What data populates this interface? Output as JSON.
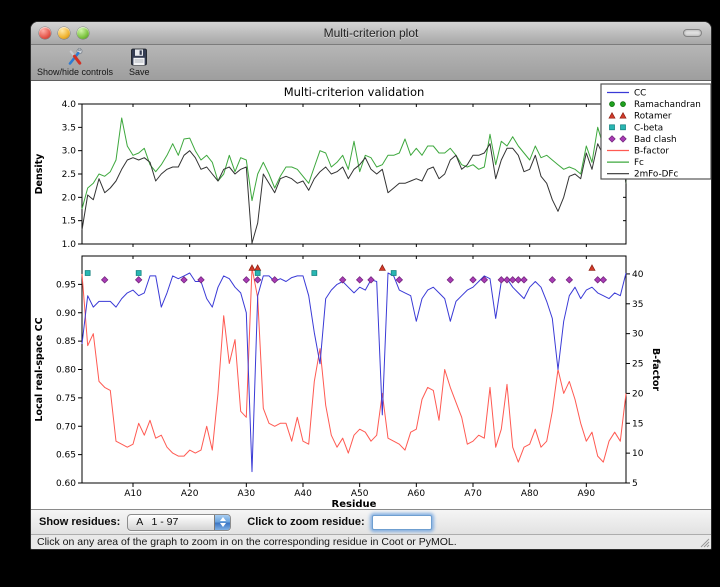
{
  "window": {
    "title": "Multi-criterion plot"
  },
  "toolbar": {
    "buttons": [
      {
        "label": "Show/hide controls",
        "icon": "tools-icon"
      },
      {
        "label": "Save",
        "icon": "save-icon"
      }
    ]
  },
  "controls": {
    "show_residues_label": "Show residues:",
    "range_value": "A   1 - 97",
    "zoom_label": "Click to zoom residue:",
    "zoom_value": ""
  },
  "status_bar": {
    "text": "Click on any area of the graph to zoom in on the corresponding residue in Coot or PyMOL."
  },
  "chart_data": {
    "type": "line",
    "title": "Multi-criterion validation",
    "xlabel": "Residue",
    "x_range": [
      1,
      97
    ],
    "x_tick_values": [
      10,
      20,
      30,
      40,
      50,
      60,
      70,
      80,
      90
    ],
    "x_tick_labels": [
      "A10",
      "A20",
      "A30",
      "A40",
      "A50",
      "A60",
      "A70",
      "A80",
      "A90"
    ],
    "grid": false,
    "legend_position": "upper right",
    "legend": [
      {
        "label": "CC",
        "glyph": "line",
        "color": "#3a3ad6"
      },
      {
        "label": "Ramachandran",
        "glyph": "circle",
        "color": "#1fa01f"
      },
      {
        "label": "Rotamer",
        "glyph": "triangle",
        "color": "#d13b2a"
      },
      {
        "label": "C-beta",
        "glyph": "square",
        "color": "#29b6b2"
      },
      {
        "label": "Bad clash",
        "glyph": "diamond",
        "color": "#a83bb4"
      },
      {
        "label": "B-factor",
        "glyph": "line",
        "color": "#ff5a52"
      },
      {
        "label": "Fc",
        "glyph": "line",
        "color": "#3ea83e"
      },
      {
        "label": "2mFo-DFc",
        "glyph": "line",
        "color": "#333333"
      }
    ],
    "subplots": [
      {
        "ylabel": "Density",
        "ylim": [
          1.0,
          4.0
        ],
        "yticks": [
          1.0,
          1.5,
          2.0,
          2.5,
          3.0,
          3.5,
          4.0
        ],
        "series": [
          {
            "name": "Fc",
            "color": "#3ea83e",
            "values": [
              1.75,
              2.2,
              2.3,
              2.5,
              2.45,
              2.55,
              2.8,
              3.7,
              3.1,
              2.9,
              2.95,
              3.05,
              2.7,
              2.55,
              2.7,
              2.9,
              3.15,
              2.9,
              3.25,
              3.27,
              3.0,
              2.8,
              2.9,
              2.75,
              2.35,
              2.5,
              2.9,
              2.55,
              2.85,
              2.8,
              1.93,
              2.5,
              2.75,
              2.5,
              2.2,
              2.45,
              2.65,
              2.65,
              2.6,
              2.45,
              2.3,
              2.65,
              3.0,
              2.95,
              2.65,
              2.75,
              2.9,
              2.6,
              3.2,
              2.55,
              2.9,
              2.85,
              2.65,
              2.7,
              2.9,
              2.9,
              2.95,
              3.25,
              2.9,
              3.05,
              2.9,
              3.1,
              3.1,
              2.95,
              2.95,
              3.05,
              2.9,
              2.7,
              2.65,
              2.7,
              2.6,
              2.65,
              3.35,
              2.7,
              3.2,
              3.1,
              3.3,
              3.1,
              2.95,
              2.8,
              3.1,
              2.85,
              2.9,
              2.8,
              2.7,
              2.6,
              2.65,
              2.6,
              2.5,
              3.1,
              2.75,
              3.5,
              3.1,
              3.1,
              3.2,
              3.3,
              2.3
            ]
          },
          {
            "name": "2mFo-DFc",
            "color": "#333333",
            "values": [
              1.3,
              2.05,
              1.95,
              2.4,
              2.1,
              2.2,
              2.35,
              2.6,
              2.8,
              2.85,
              2.8,
              2.85,
              2.75,
              2.35,
              2.5,
              2.6,
              2.65,
              2.65,
              2.9,
              3.0,
              2.85,
              2.6,
              2.65,
              2.5,
              2.35,
              2.6,
              2.65,
              2.5,
              2.6,
              2.65,
              1.02,
              1.45,
              2.5,
              2.3,
              2.1,
              2.4,
              2.45,
              2.4,
              2.3,
              2.35,
              2.15,
              2.4,
              2.55,
              2.65,
              2.5,
              2.55,
              2.65,
              2.4,
              2.6,
              2.7,
              2.85,
              2.6,
              2.5,
              2.6,
              2.1,
              2.2,
              2.3,
              2.3,
              2.35,
              2.4,
              2.35,
              2.6,
              2.65,
              2.4,
              2.5,
              2.8,
              2.9,
              2.6,
              2.7,
              2.9,
              2.9,
              2.95,
              3.15,
              2.4,
              2.8,
              3.05,
              3.05,
              2.9,
              2.55,
              2.6,
              2.9,
              2.45,
              2.3,
              1.95,
              1.7,
              2.0,
              2.45,
              2.5,
              2.4,
              2.95,
              2.6,
              3.15,
              2.9,
              3.0,
              3.1,
              3.1,
              2.3
            ]
          }
        ]
      },
      {
        "ylabel": "Local real-space CC",
        "ylim": [
          0.6,
          1.0
        ],
        "yticks": [
          0.6,
          0.65,
          0.7,
          0.75,
          0.8,
          0.85,
          0.9,
          0.95
        ],
        "ylabel_right": "B-factor",
        "ylim_right": [
          5,
          43
        ],
        "yticks_right": [
          5,
          10,
          15,
          20,
          25,
          30,
          35,
          40
        ],
        "series": [
          {
            "name": "CC",
            "axis": "left",
            "color": "#3a3ad6",
            "values": [
              0.845,
              0.93,
              0.91,
              0.92,
              0.92,
              0.92,
              0.91,
              0.925,
              0.935,
              0.94,
              0.93,
              0.935,
              0.965,
              0.965,
              0.91,
              0.935,
              0.965,
              0.96,
              0.965,
              0.97,
              0.955,
              0.955,
              0.925,
              0.91,
              0.945,
              0.965,
              0.96,
              0.945,
              0.935,
              0.9,
              0.62,
              0.93,
              0.965,
              0.965,
              0.955,
              0.96,
              0.955,
              0.962,
              0.965,
              0.965,
              0.93,
              0.865,
              0.81,
              0.925,
              0.94,
              0.95,
              0.955,
              0.945,
              0.935,
              0.945,
              0.94,
              0.958,
              0.955,
              0.72,
              0.97,
              0.965,
              0.94,
              0.935,
              0.93,
              0.885,
              0.925,
              0.94,
              0.945,
              0.935,
              0.925,
              0.885,
              0.92,
              0.93,
              0.94,
              0.945,
              0.955,
              0.965,
              0.96,
              0.89,
              0.955,
              0.96,
              0.945,
              0.935,
              0.925,
              0.945,
              0.955,
              0.945,
              0.92,
              0.89,
              0.8,
              0.885,
              0.93,
              0.945,
              0.925,
              0.94,
              0.945,
              0.935,
              0.93,
              0.925,
              0.935,
              0.93,
              0.97
            ]
          },
          {
            "name": "B-factor",
            "axis": "right",
            "color": "#ff5a52",
            "values": [
              40,
              28,
              30,
              22,
              21,
              20.5,
              12,
              11.5,
              11,
              11.5,
              15,
              13,
              15.5,
              12.5,
              13,
              11,
              10,
              9.5,
              9.5,
              10.5,
              10,
              10.5,
              14.5,
              10.5,
              20,
              33,
              25,
              29,
              17,
              16,
              41,
              36,
              17.5,
              15,
              14.5,
              15,
              15,
              12,
              16,
              12,
              11.5,
              22,
              27.5,
              18,
              13,
              11,
              12.5,
              10,
              13,
              14,
              13.5,
              12,
              13,
              20,
              12.5,
              12,
              11.5,
              10.5,
              13.5,
              14,
              19,
              21,
              20.5,
              15.5,
              24,
              21,
              18.5,
              16,
              11.5,
              12,
              13,
              12.5,
              21,
              11,
              14,
              21.5,
              11,
              8.5,
              11,
              11.5,
              14,
              11,
              12,
              17,
              24,
              20,
              22,
              19,
              15,
              12,
              13.5,
              9.5,
              8.5,
              12,
              13.5,
              12,
              20
            ]
          }
        ],
        "markers": [
          {
            "name": "Ramachandran",
            "shape": "circle",
            "color": "#1fa01f",
            "edge": "#0c6e0c",
            "y": 0.986,
            "residues": []
          },
          {
            "name": "Rotamer",
            "shape": "triangle",
            "color": "#d13b2a",
            "edge": "#8e1f12",
            "y": 0.979,
            "residues": [
              31,
              32,
              54,
              91
            ]
          },
          {
            "name": "C-beta",
            "shape": "square",
            "color": "#29b6b2",
            "edge": "#0e7d7a",
            "y": 0.97,
            "residues": [
              2,
              11,
              32,
              42,
              56
            ]
          },
          {
            "name": "Bad clash",
            "shape": "diamond",
            "color": "#a83bb4",
            "edge": "#6e2478",
            "y": 0.958,
            "residues": [
              5,
              11,
              19,
              22,
              30,
              32,
              35,
              47,
              50,
              52,
              57,
              66,
              70,
              72,
              75,
              76,
              77,
              78,
              79,
              84,
              87,
              92,
              93
            ]
          }
        ]
      }
    ]
  }
}
